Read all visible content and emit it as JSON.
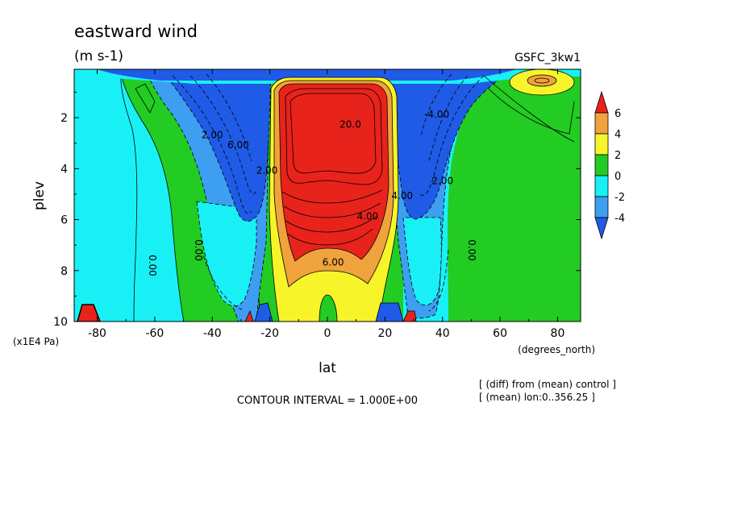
{
  "chart_data": {
    "type": "heatmap",
    "title": "eastward wind",
    "units": "(m s-1)",
    "model": "GSFC_3kw1",
    "xlabel": "lat",
    "xunits": "(degrees_north)",
    "ylabel": "plev",
    "yunits": "(x1E4 Pa)",
    "xlim": [
      -88,
      88
    ],
    "ylim": [
      10,
      0.1
    ],
    "x_ticks": [
      -80,
      -60,
      -40,
      -20,
      0,
      20,
      40,
      60,
      80
    ],
    "y_ticks": [
      2,
      4,
      6,
      8,
      10
    ],
    "y_tick_labels": [
      "2",
      "4",
      "6",
      "8",
      "10"
    ],
    "x_tick_labels": [
      "-80",
      "-60",
      "-40",
      "-20",
      "0",
      "20",
      "40",
      "60",
      "80"
    ],
    "contour_interval_text": "CONTOUR INTERVAL = 1.000E+00",
    "notes": [
      "[ (diff) from (mean) control ]",
      "[ (mean) lon:0..356.25 ]"
    ],
    "colorbar": {
      "labels": [
        "6",
        "4",
        "2",
        "0",
        "-2",
        "-4"
      ],
      "bins": [
        {
          "range": [
            6,
            100
          ],
          "color": "#e8231b"
        },
        {
          "range": [
            4,
            6
          ],
          "color": "#f0a23c"
        },
        {
          "range": [
            2,
            4
          ],
          "color": "#f7f42a"
        },
        {
          "range": [
            0,
            2
          ],
          "color": "#22cc22"
        },
        {
          "range": [
            -2,
            0
          ],
          "color": "#19f0f6"
        },
        {
          "range": [
            -4,
            -2
          ],
          "color": "#3d9ef2"
        },
        {
          "range": [
            -100,
            -4
          ],
          "color": "#1f5be6"
        }
      ]
    },
    "contour_labels": [
      {
        "text": "20.0",
        "lat": 8,
        "plev": 2.4
      },
      {
        "text": "6.00",
        "lat": 2,
        "plev": 7.8
      },
      {
        "text": "4.00",
        "lat": 14,
        "plev": 6.0
      },
      {
        "text": "2.00",
        "lat": -21,
        "plev": 4.2
      },
      {
        "text": "0.00",
        "lat": -62,
        "plev": 7.8
      },
      {
        "text": "0.00",
        "lat": -46,
        "plev": 7.2
      },
      {
        "text": "0.00",
        "lat": 49,
        "plev": 7.2
      },
      {
        "text": "2.00",
        "lat": -40,
        "plev": 2.8
      },
      {
        "text": "6.00",
        "lat": -31,
        "plev": 3.2
      },
      {
        "text": "2.00",
        "lat": 40,
        "plev": 4.6
      },
      {
        "text": "4.00",
        "lat": 26,
        "plev": 5.2
      },
      {
        "text": "-4.00",
        "lat": 38,
        "plev": 2.0
      }
    ],
    "regions": [
      {
        "value": 1,
        "color": "#22cc22",
        "note": "background positive"
      },
      {
        "value": -1.2,
        "lat_range": [
          -88,
          -67
        ],
        "plev_range": [
          0.6,
          10
        ]
      },
      {
        "value": -1.2,
        "lat_range": [
          35,
          50
        ],
        "plev_range": [
          0.5,
          10
        ]
      },
      {
        "value": -5,
        "lat_range": [
          -40,
          -20
        ],
        "plev_range": [
          0.3,
          6.5
        ],
        "note": "southern easterly core"
      },
      {
        "value": -5,
        "lat_range": [
          17,
          35
        ],
        "plev_range": [
          0.3,
          6.5
        ],
        "note": "northern easterly core"
      },
      {
        "value": 8,
        "lat_range": [
          -20,
          16
        ],
        "plev_range": [
          0.4,
          4.5
        ],
        "note": "equatorial westerly core"
      },
      {
        "value": 3,
        "lat_range": [
          62,
          82
        ],
        "plev_range": [
          0.1,
          0.8
        ],
        "note": "high-latitude positive cell"
      }
    ]
  }
}
